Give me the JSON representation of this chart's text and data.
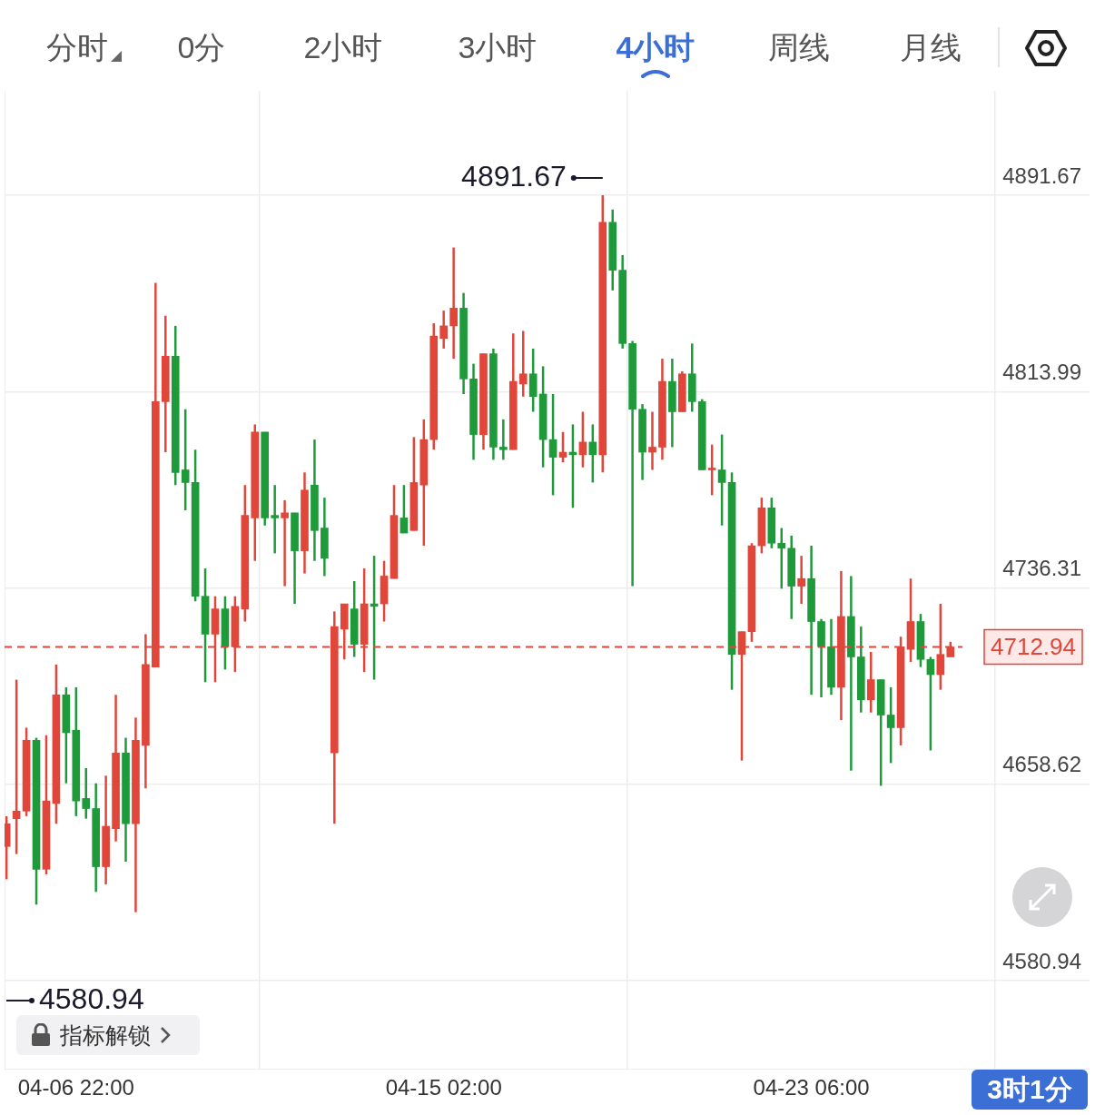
{
  "chart_data": {
    "type": "candlestick",
    "categories": [
      null,
      null,
      null,
      null,
      null,
      null,
      null,
      "04-06 22:00",
      null,
      null,
      null,
      null,
      null,
      null,
      null,
      null,
      null,
      null,
      null,
      null,
      null,
      null,
      null,
      null,
      null,
      null,
      null,
      null,
      null,
      null,
      null,
      null,
      null,
      null,
      null,
      null,
      null,
      null,
      null,
      null,
      null,
      null,
      null,
      null,
      "04-15 02:00",
      null,
      null,
      null,
      null,
      null,
      null,
      null,
      null,
      null,
      null,
      null,
      null,
      null,
      null,
      null,
      null,
      null,
      null,
      null,
      null,
      null,
      null,
      null,
      null,
      null,
      null,
      null,
      null,
      null,
      null,
      null,
      null,
      null,
      null,
      null,
      null,
      "04-23 06:00",
      null,
      null,
      null,
      null,
      null,
      null,
      null,
      null,
      null,
      null,
      null,
      null,
      null,
      null
    ],
    "ohlc": [
      [
        4634,
        4646,
        4621,
        4643
      ],
      [
        4645,
        4700,
        4631,
        4648
      ],
      [
        4648,
        4681,
        4646,
        4676
      ],
      [
        4676,
        4677,
        4611,
        4625
      ],
      [
        4625,
        4678,
        4623,
        4652
      ],
      [
        4651,
        4706,
        4643,
        4694
      ],
      [
        4694,
        4697,
        4659,
        4679
      ],
      [
        4680,
        4697,
        4646,
        4652
      ],
      [
        4653,
        4665,
        4645,
        4649
      ],
      [
        4649,
        4659,
        4616,
        4626
      ],
      [
        4626,
        4662,
        4619,
        4642
      ],
      [
        4641,
        4694,
        4636,
        4671
      ],
      [
        4671,
        4677,
        4628,
        4643
      ],
      [
        4643,
        4685,
        4608,
        4676
      ],
      [
        4674,
        4718,
        4657,
        4706
      ],
      [
        4705,
        4857,
        4705,
        4810
      ],
      [
        4810,
        4844,
        4790,
        4828
      ],
      [
        4828,
        4840,
        4777,
        4782
      ],
      [
        4783,
        4807,
        4767,
        4778
      ],
      [
        4778,
        4791,
        4731,
        4733
      ],
      [
        4733,
        4744,
        4699,
        4718
      ],
      [
        4718,
        4733,
        4699,
        4728
      ],
      [
        4728,
        4733,
        4704,
        4713
      ],
      [
        4713,
        4733,
        4703,
        4729
      ],
      [
        4728,
        4777,
        4723,
        4765
      ],
      [
        4764,
        4801,
        4747,
        4798
      ],
      [
        4798,
        4798,
        4761,
        4764
      ],
      [
        4765,
        4777,
        4750,
        4764
      ],
      [
        4764,
        4771,
        4737,
        4766
      ],
      [
        4766,
        4766,
        4730,
        4751
      ],
      [
        4751,
        4782,
        4742,
        4775
      ],
      [
        4777,
        4795,
        4747,
        4759
      ],
      [
        4760,
        4772,
        4741,
        4748
      ],
      [
        4671,
        4727,
        4643,
        4721
      ],
      [
        4720,
        4730,
        4708,
        4730
      ],
      [
        4728,
        4739,
        4709,
        4714
      ],
      [
        4714,
        4744,
        4703,
        4730
      ],
      [
        4730,
        4749,
        4700,
        4729
      ],
      [
        4730,
        4747,
        4723,
        4741
      ],
      [
        4740,
        4777,
        4740,
        4765
      ],
      [
        4764,
        4777,
        4758,
        4758
      ],
      [
        4759,
        4796,
        4759,
        4778
      ],
      [
        4777,
        4803,
        4753,
        4795
      ],
      [
        4795,
        4841,
        4791,
        4836
      ],
      [
        4835,
        4846,
        4831,
        4840
      ],
      [
        4840,
        4871,
        4827,
        4847
      ],
      [
        4847,
        4853,
        4813,
        4819
      ],
      [
        4819,
        4825,
        4787,
        4797
      ],
      [
        4797,
        4829,
        4791,
        4829
      ],
      [
        4829,
        4831,
        4787,
        4792
      ],
      [
        4792,
        4803,
        4787,
        4791
      ],
      [
        4791,
        4837,
        4791,
        4818
      ],
      [
        4817,
        4838,
        4812,
        4821
      ],
      [
        4821,
        4831,
        4806,
        4812
      ],
      [
        4813,
        4824,
        4784,
        4795
      ],
      [
        4795,
        4813,
        4773,
        4788
      ],
      [
        4788,
        4798,
        4786,
        4790
      ],
      [
        4790,
        4801,
        4768,
        4789
      ],
      [
        4789,
        4806,
        4784,
        4794
      ],
      [
        4794,
        4801,
        4778,
        4789
      ],
      [
        4789,
        4891.67,
        4782,
        4881
      ],
      [
        4881,
        4886,
        4854,
        4862
      ],
      [
        4862,
        4868,
        4831,
        4833
      ],
      [
        4833,
        4834,
        4737,
        4807
      ],
      [
        4807,
        4809,
        4779,
        4790
      ],
      [
        4790,
        4806,
        4783,
        4792
      ],
      [
        4792,
        4827,
        4787,
        4818
      ],
      [
        4818,
        4827,
        4792,
        4806
      ],
      [
        4806,
        4822,
        4806,
        4821
      ],
      [
        4821,
        4833,
        4806,
        4810
      ],
      [
        4810,
        4811,
        4783,
        4783
      ],
      [
        4783,
        4793,
        4773,
        4783
      ],
      [
        4783,
        4797,
        4761,
        4778
      ],
      [
        4778,
        4782,
        4696,
        4710
      ],
      [
        4710,
        4719,
        4668,
        4719
      ],
      [
        4719,
        4754,
        4715,
        4753
      ],
      [
        4753,
        4772,
        4750,
        4768
      ],
      [
        4768,
        4772,
        4752,
        4754
      ],
      [
        4754,
        4760,
        4736,
        4752
      ],
      [
        4752,
        4757,
        4724,
        4737
      ],
      [
        4737,
        4749,
        4730,
        4740
      ],
      [
        4740,
        4753,
        4694,
        4723
      ],
      [
        4723,
        4724,
        4693,
        4713
      ],
      [
        4713,
        4724,
        4694,
        4697
      ],
      [
        4697,
        4743,
        4684,
        4725
      ],
      [
        4725,
        4741,
        4664,
        4709
      ],
      [
        4709,
        4721,
        4687,
        4692
      ],
      [
        4692,
        4711,
        4687,
        4700
      ],
      [
        4700,
        4700,
        4658,
        4686
      ],
      [
        4686,
        4697,
        4667,
        4681
      ],
      [
        4681,
        4717,
        4674,
        4713
      ],
      [
        4712,
        4740,
        4707,
        4723
      ],
      [
        4723,
        4726,
        4705,
        4708
      ],
      [
        4708,
        4709,
        4672,
        4702
      ],
      [
        4702,
        4730,
        4696,
        4710
      ],
      [
        4709,
        4715,
        4709,
        4712.94
      ]
    ],
    "ylim": [
      4546,
      4933
    ],
    "yticks": [
      4580.94,
      4658.62,
      4736.31,
      4813.99,
      4891.67
    ],
    "grid": true,
    "ref_lines": [
      {
        "axis": "y",
        "value": 4712.94,
        "label": "4712.94",
        "color": "#e0463a",
        "line_style": "dashed"
      }
    ],
    "annotations": [
      "分时",
      "0分",
      "2小时",
      "3小时",
      "4小时",
      "周线",
      "月线",
      "指标解锁",
      "3时1分",
      "4891.67",
      "4580.94"
    ]
  }
}
